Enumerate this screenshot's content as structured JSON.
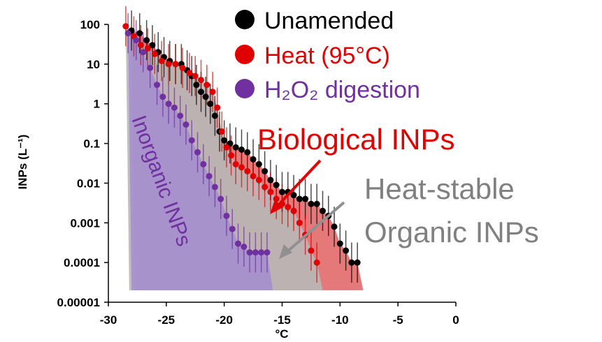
{
  "chart_data": {
    "type": "scatter",
    "xlabel": "°C",
    "ylabel": "INPs (L⁻¹)",
    "xlim": [
      -30,
      0
    ],
    "ylim": [
      1e-05,
      100
    ],
    "yscale": "log",
    "grid": false,
    "legend_position": "top-right",
    "x_ticks": [
      "-30",
      "-25",
      "-20",
      "-15",
      "-10",
      "-5",
      "0"
    ],
    "y_ticks": [
      "0.00001",
      "0.0001",
      "0.001",
      "0.01",
      "0.1",
      "1",
      "10",
      "100"
    ],
    "series": [
      {
        "name": "Unamended",
        "color": "#000000",
        "x": [
          -28,
          -27.3,
          -26.7,
          -26.2,
          -25.7,
          -25.2,
          -24.7,
          -24.2,
          -23.7,
          -23.2,
          -22.8,
          -22.4,
          -22.0,
          -21.6,
          -21.2,
          -20.8,
          -20.4,
          -20.0,
          -19.5,
          -19.0,
          -18.5,
          -18.0,
          -17.5,
          -17.0,
          -16.5,
          -16.0,
          -15.5,
          -15.0,
          -14.5,
          -14.0,
          -13.5,
          -13.0,
          -12.5,
          -12.0,
          -11.5,
          -11.0,
          -10.5,
          -10.0,
          -9.5,
          -9.0,
          -8.5
        ],
        "y": [
          70,
          60,
          40,
          30,
          20,
          15,
          12,
          10,
          10,
          7,
          5,
          3,
          2,
          1.5,
          1.0,
          0.5,
          0.2,
          0.12,
          0.1,
          0.08,
          0.07,
          0.06,
          0.04,
          0.03,
          0.02,
          0.012,
          0.009,
          0.006,
          0.006,
          0.005,
          0.004,
          0.004,
          0.003,
          0.003,
          0.002,
          0.0015,
          0.0008,
          0.0003,
          0.0002,
          0.0001,
          0.0001
        ]
      },
      {
        "name": "Heat (95°C)",
        "color": "#e00000",
        "x": [
          -28.5,
          -27.8,
          -27.2,
          -26.6,
          -26.0,
          -25.4,
          -24.8,
          -24.2,
          -23.6,
          -23.0,
          -22.5,
          -22.0,
          -21.5,
          -21.0,
          -20.6,
          -20.2,
          -19.8,
          -19.4,
          -19.0,
          -18.5,
          -18.0,
          -17.5,
          -17.0,
          -16.5,
          -16.0,
          -15.5,
          -15.0,
          -14.5,
          -14.0,
          -13.5,
          -13.0,
          -12.5,
          -12.0
        ],
        "y": [
          90,
          50,
          30,
          25,
          18,
          12,
          10,
          10,
          8,
          6,
          5,
          4,
          3,
          2,
          0.8,
          0.2,
          0.08,
          0.05,
          0.03,
          0.025,
          0.02,
          0.015,
          0.012,
          0.008,
          0.006,
          0.004,
          0.003,
          0.0025,
          0.002,
          0.001,
          0.0005,
          0.0002,
          0.0001
        ]
      },
      {
        "name": "H₂O₂ digestion",
        "color": "#7030a0",
        "x": [
          -28.3,
          -27.6,
          -27.0,
          -26.4,
          -25.8,
          -25.3,
          -24.8,
          -24.3,
          -23.8,
          -23.3,
          -22.8,
          -22.3,
          -21.8,
          -21.3,
          -20.8,
          -20.3,
          -19.8,
          -19.3,
          -18.8,
          -18.3,
          -17.8,
          -17.3,
          -16.8,
          -16.3
        ],
        "y": [
          60,
          40,
          20,
          8,
          3,
          1.5,
          1.0,
          0.8,
          0.5,
          0.3,
          0.12,
          0.06,
          0.03,
          0.015,
          0.008,
          0.004,
          0.0015,
          0.0007,
          0.0003,
          0.00025,
          0.00018,
          0.00018,
          0.00018,
          0.00018
        ]
      }
    ],
    "areas": [
      {
        "label": "Biological INPs",
        "color": "#e06060"
      },
      {
        "label": "Heat-stable Organic INPs",
        "color": "#b8b8b8"
      },
      {
        "label": "Inorganic INPs",
        "color": "#a58cd0"
      }
    ],
    "annotations": {
      "biological": "Biological INPs",
      "heat_stable_line1": "Heat-stable",
      "heat_stable_line2": "Organic INPs",
      "inorganic": "Inorganic INPs"
    }
  }
}
